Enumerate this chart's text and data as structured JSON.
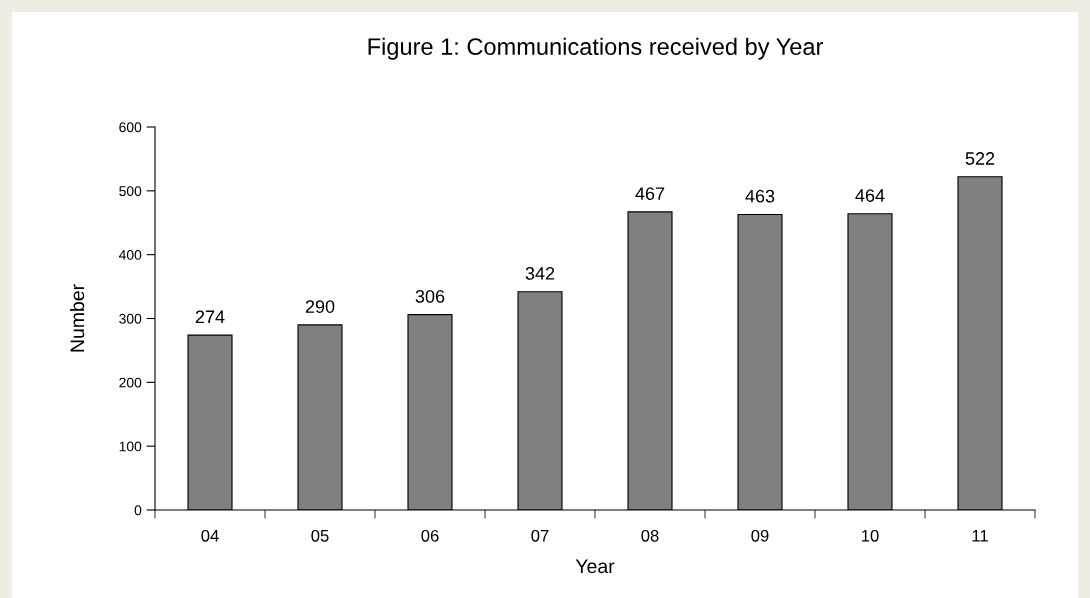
{
  "chart_data": {
    "type": "bar",
    "title": "Figure 1: Communications received by Year",
    "xlabel": "Year",
    "ylabel": "Number",
    "categories": [
      "04",
      "05",
      "06",
      "07",
      "08",
      "09",
      "10",
      "11"
    ],
    "values": [
      274,
      290,
      306,
      342,
      467,
      463,
      464,
      522
    ],
    "color": "#808080",
    "ylim": [
      0,
      600
    ],
    "yticks": [
      0,
      100,
      200,
      300,
      400,
      500,
      600
    ],
    "data_labels": true,
    "grid": false,
    "legend": false
  }
}
